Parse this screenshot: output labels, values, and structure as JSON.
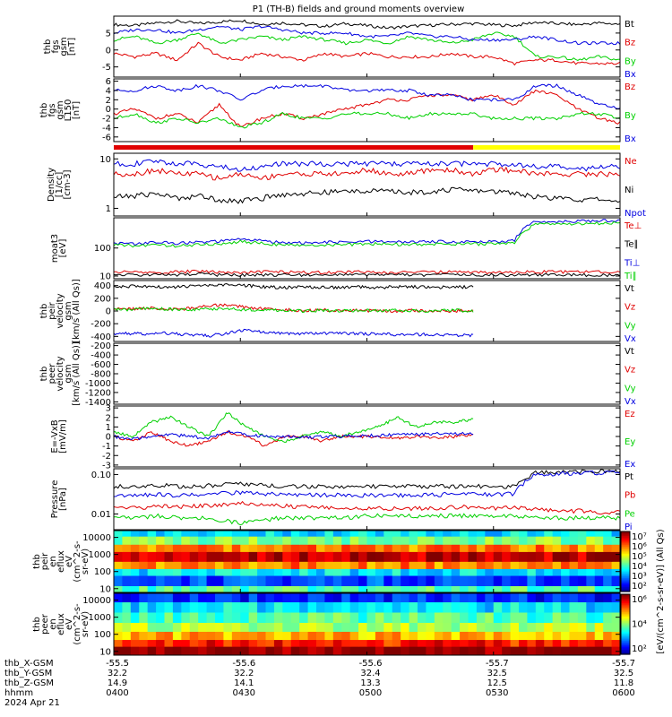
{
  "title": "P1 (TH-B) fields and ground moments overview",
  "colors": {
    "black": "#000000",
    "red": "#e00000",
    "green": "#00d000",
    "blue": "#0000e0",
    "yellow": "#ffff00"
  },
  "chart_data": [
    {
      "type": "line",
      "ylabel_lines": [
        "thb",
        "fgs",
        "gsm",
        "[nT]"
      ],
      "ylim": [
        -8,
        10
      ],
      "yticks": [
        "5",
        "0",
        "-5"
      ],
      "ytick_values": [
        5,
        0,
        -5
      ],
      "series": [
        {
          "name": "Bt",
          "color": "black",
          "values": [
            7.5,
            7.2,
            8.0,
            8.5,
            7.8,
            8.3,
            8.8,
            7.6,
            8.0,
            7.4,
            7.0,
            7.8,
            7.2,
            6.5,
            7.0,
            7.3,
            7.6,
            7.8,
            7.4,
            7.2,
            8.2,
            7.8,
            7.5,
            8.0,
            7.6
          ]
        },
        {
          "name": "Bz",
          "color": "red",
          "values": [
            -1,
            -2,
            -1,
            -3,
            2,
            -2,
            -3,
            -1,
            -2,
            -3,
            -1,
            -2,
            -1,
            -2,
            -2,
            -2,
            -1,
            -2,
            -2,
            -4,
            -3,
            -3,
            -4,
            -4,
            -4
          ]
        },
        {
          "name": "By",
          "color": "green",
          "values": [
            3,
            4,
            2,
            3,
            5,
            2,
            3,
            4,
            3,
            4,
            3,
            2,
            3,
            2,
            4,
            3,
            2,
            3,
            5,
            4,
            -2,
            -2,
            -3,
            -2,
            -3
          ]
        },
        {
          "name": "Bx",
          "color": "blue",
          "values": [
            5,
            6,
            6,
            5,
            6,
            7,
            6,
            7,
            6,
            5,
            5,
            5,
            4,
            4,
            5,
            4,
            4,
            3,
            3,
            3,
            4,
            3,
            2,
            2,
            2
          ]
        }
      ]
    },
    {
      "type": "line",
      "ylabel_lines": [
        "thb",
        "fgs",
        "gsm",
        "L150",
        "[nT]"
      ],
      "ylim": [
        -7,
        6.5
      ],
      "yticks": [
        "6",
        "4",
        "2",
        "0",
        "-2",
        "-4",
        "-6"
      ],
      "ytick_values": [
        6,
        4,
        2,
        0,
        -2,
        -4,
        -6
      ],
      "series": [
        {
          "name": "Bz",
          "color": "red",
          "values": [
            -1,
            0,
            -2,
            -1,
            -3,
            1,
            -4,
            -2,
            -1,
            -2,
            -1,
            0,
            1,
            2,
            2,
            3,
            3,
            2,
            3,
            1,
            4,
            3,
            0,
            -2,
            -3
          ]
        },
        {
          "name": "By",
          "color": "green",
          "values": [
            -2,
            -1,
            -3,
            -2,
            -3,
            -2,
            -4,
            -3,
            -1,
            -2,
            -2,
            -1,
            -1,
            -1,
            -2,
            -1,
            -1,
            -1,
            -2,
            -2,
            -2,
            -2,
            -1,
            -1,
            -2
          ]
        },
        {
          "name": "Bx",
          "color": "blue",
          "values": [
            4,
            4,
            5,
            4,
            5,
            4,
            2,
            4,
            5,
            5,
            5,
            4,
            4,
            4,
            4,
            3,
            3,
            2,
            2,
            2,
            5,
            5,
            3,
            1,
            0
          ]
        }
      ]
    },
    {
      "type": "line",
      "ylabel_lines": [
        "Density",
        "[1/cc]",
        "[cm-3]"
      ],
      "log": true,
      "ylim": [
        0.7,
        13
      ],
      "yticks": [
        "10",
        "1"
      ],
      "ytick_values": [
        10,
        1
      ],
      "series": [
        {
          "name": "Ne",
          "color": "red",
          "values": [
            5,
            5,
            6,
            5,
            5,
            4,
            5,
            4,
            5,
            5,
            5,
            5,
            6,
            5,
            5,
            6,
            6,
            5,
            6,
            6,
            5,
            5,
            5,
            5,
            5
          ]
        },
        {
          "name": "Ni",
          "color": "black",
          "values": [
            1.7,
            1.8,
            2.0,
            1.6,
            1.8,
            1.5,
            1.4,
            1.6,
            1.9,
            2.0,
            2.1,
            2.2,
            2.3,
            2.2,
            2.1,
            2.2,
            2.4,
            2.3,
            2.2,
            2.1,
            1.7,
            1.6,
            1.5,
            1.5,
            1.4
          ]
        },
        {
          "name": "Npot",
          "color": "blue",
          "values": [
            8,
            8,
            9,
            8,
            8,
            7,
            6,
            7,
            8,
            8,
            8,
            8,
            8,
            8,
            8,
            8,
            8,
            8,
            8,
            8,
            7,
            7,
            6,
            7,
            7
          ]
        }
      ]
    },
    {
      "type": "line",
      "ylabel_lines": [
        "moat3",
        "[eV]"
      ],
      "log": true,
      "ylim": [
        8,
        1200
      ],
      "yticks": [
        "100",
        "10"
      ],
      "ytick_values": [
        100,
        10
      ],
      "series": [
        {
          "name": "Te⊥",
          "color": "red",
          "values": [
            14,
            14,
            13,
            14,
            15,
            14,
            13,
            14,
            14,
            14,
            13,
            14,
            14,
            13,
            14,
            14,
            14,
            14,
            13,
            14,
            14,
            14,
            14,
            14,
            14
          ]
        },
        {
          "name": "Te∥",
          "color": "black",
          "values": [
            11,
            11,
            11,
            11,
            12,
            11,
            11,
            11,
            11,
            11,
            11,
            11,
            11,
            11,
            11,
            11,
            11,
            11,
            11,
            11,
            11,
            11,
            11,
            11,
            11
          ]
        },
        {
          "name": "Ti⊥",
          "color": "blue",
          "values": [
            150,
            140,
            160,
            150,
            160,
            170,
            210,
            180,
            160,
            150,
            160,
            160,
            170,
            170,
            160,
            170,
            170,
            170,
            170,
            180,
            880,
            900,
            920,
            940,
            960
          ]
        },
        {
          "name": "Ti∥",
          "color": "green",
          "values": [
            130,
            120,
            130,
            120,
            130,
            140,
            170,
            150,
            130,
            120,
            130,
            130,
            140,
            140,
            130,
            140,
            140,
            140,
            140,
            150,
            700,
            720,
            740,
            760,
            780
          ]
        }
      ]
    },
    {
      "type": "line",
      "ylabel_lines": [
        "thb",
        "peir",
        "velocity",
        "gsm",
        "[km/s (All Qs)]"
      ],
      "ylim": [
        -480,
        480
      ],
      "yticks": [
        "400",
        "200",
        "0",
        "-200",
        "-400"
      ],
      "ytick_values": [
        400,
        200,
        0,
        -200,
        -400
      ],
      "series": [
        {
          "name": "Vt",
          "color": "black",
          "values": [
            380,
            390,
            380,
            370,
            390,
            400,
            410,
            400,
            380,
            370,
            380,
            370,
            370,
            380,
            370,
            380,
            380,
            370,
            380,
            380
          ]
        },
        {
          "name": "Vz",
          "color": "red",
          "values": [
            40,
            30,
            50,
            20,
            40,
            80,
            100,
            60,
            30,
            20,
            10,
            20,
            10,
            10,
            0,
            0,
            10,
            0,
            0,
            10
          ]
        },
        {
          "name": "Vy",
          "color": "green",
          "values": [
            30,
            20,
            40,
            30,
            20,
            30,
            40,
            20,
            20,
            10,
            0,
            10,
            0,
            10,
            0,
            10,
            0,
            0,
            10,
            0
          ]
        },
        {
          "name": "Vx",
          "color": "blue",
          "values": [
            -350,
            -360,
            -360,
            -350,
            -380,
            -390,
            -350,
            -300,
            -340,
            -350,
            -360,
            -350,
            -350,
            -360,
            -360,
            -370,
            -370,
            -370,
            -380,
            -380
          ]
        }
      ]
    },
    {
      "type": "line",
      "ylabel_lines": [
        "thb",
        "peer",
        "velocity",
        "gsm",
        "[km/s (All Qs)]"
      ],
      "ylim": [
        -1450,
        -150
      ],
      "yticks": [
        "-200",
        "-400",
        "-600",
        "-800",
        "-1000",
        "-1200",
        "-1400"
      ],
      "ytick_values": [
        -200,
        -400,
        -600,
        -800,
        -1000,
        -1200,
        -1400
      ],
      "series": [
        {
          "name": "Vt",
          "color": "black",
          "values": []
        },
        {
          "name": "Vz",
          "color": "red",
          "values": []
        },
        {
          "name": "Vy",
          "color": "green",
          "values": []
        },
        {
          "name": "Vx",
          "color": "blue",
          "values": []
        }
      ]
    },
    {
      "type": "line",
      "ylabel_lines": [
        "E=-VxB",
        "[mV/m]"
      ],
      "ylim": [
        -3.2,
        3.2
      ],
      "yticks": [
        "3",
        "2",
        "1",
        "0",
        "-1",
        "-2",
        "-3"
      ],
      "ytick_values": [
        3,
        2,
        1,
        0,
        -1,
        -2,
        -3
      ],
      "series": [
        {
          "name": "Ez",
          "color": "red",
          "values": [
            0,
            -0.5,
            0.5,
            -0.5,
            -1,
            -0.5,
            0.5,
            0,
            -1,
            0,
            0,
            -0.5,
            0,
            0,
            0,
            -0.2,
            0,
            -0.2,
            0,
            0.2
          ]
        },
        {
          "name": "Ey",
          "color": "green",
          "values": [
            0.5,
            0,
            1.5,
            2,
            1,
            0,
            2.5,
            1,
            0,
            -0.5,
            0,
            0.5,
            0,
            0.5,
            1,
            2,
            1,
            1.5,
            1.5,
            1.8
          ]
        },
        {
          "name": "Ex",
          "color": "blue",
          "values": [
            0,
            -0.3,
            0,
            0.2,
            0,
            -0.2,
            0.5,
            0.2,
            0,
            0,
            -0.1,
            0,
            0,
            0.1,
            0.1,
            0.2,
            0.2,
            0.3,
            0.3,
            0.3
          ]
        }
      ]
    },
    {
      "type": "line",
      "ylabel_lines": [
        "Pressure",
        "[nPa]"
      ],
      "log": true,
      "ylim": [
        0.004,
        0.14
      ],
      "yticks": [
        "0.10",
        "0.01"
      ],
      "ytick_values": [
        0.1,
        0.01
      ],
      "series": [
        {
          "name": "Pt",
          "color": "black",
          "values": [
            0.05,
            0.05,
            0.055,
            0.05,
            0.05,
            0.055,
            0.06,
            0.055,
            0.05,
            0.05,
            0.05,
            0.05,
            0.05,
            0.05,
            0.05,
            0.05,
            0.05,
            0.05,
            0.05,
            0.05,
            0.11,
            0.115,
            0.12,
            0.12,
            0.125
          ]
        },
        {
          "name": "Pb",
          "color": "red",
          "values": [
            0.015,
            0.014,
            0.016,
            0.015,
            0.016,
            0.017,
            0.02,
            0.017,
            0.016,
            0.015,
            0.015,
            0.014,
            0.014,
            0.014,
            0.014,
            0.014,
            0.015,
            0.015,
            0.014,
            0.015,
            0.013,
            0.012,
            0.012,
            0.011,
            0.011
          ]
        },
        {
          "name": "Pe",
          "color": "green",
          "values": [
            0.008,
            0.008,
            0.009,
            0.008,
            0.008,
            0.007,
            0.006,
            0.007,
            0.008,
            0.008,
            0.008,
            0.008,
            0.009,
            0.009,
            0.009,
            0.009,
            0.009,
            0.009,
            0.009,
            0.009,
            0.008,
            0.008,
            0.008,
            0.008,
            0.008
          ]
        },
        {
          "name": "Pi",
          "color": "blue",
          "values": [
            0.03,
            0.03,
            0.032,
            0.03,
            0.03,
            0.033,
            0.035,
            0.033,
            0.03,
            0.03,
            0.03,
            0.03,
            0.03,
            0.03,
            0.03,
            0.03,
            0.032,
            0.032,
            0.032,
            0.032,
            0.1,
            0.105,
            0.11,
            0.112,
            0.115
          ]
        }
      ]
    },
    {
      "type": "heatmap",
      "ylabel_lines": [
        "thb",
        "peir",
        "en",
        "eflux",
        "eV",
        "(cm^2-s-",
        "sr-eV)"
      ],
      "log": true,
      "ylim": [
        6,
        25000
      ],
      "yticks": [
        "10000",
        "1000",
        "100",
        "10"
      ],
      "ytick_values": [
        10000,
        1000,
        100,
        10
      ],
      "bands": [
        {
          "from": 6,
          "to": 15,
          "level": 0.45
        },
        {
          "from": 15,
          "to": 60,
          "level": 0.2
        },
        {
          "from": 60,
          "to": 150,
          "level": 0.35
        },
        {
          "from": 150,
          "to": 400,
          "level": 0.75
        },
        {
          "from": 400,
          "to": 1500,
          "level": 0.95
        },
        {
          "from": 1500,
          "to": 4000,
          "level": 0.75
        },
        {
          "from": 4000,
          "to": 12000,
          "level": 0.5
        },
        {
          "from": 12000,
          "to": 25000,
          "level": 0.35
        }
      ]
    },
    {
      "type": "heatmap",
      "ylabel_lines": [
        "thb",
        "peer",
        "en",
        "eflux",
        "eV",
        "(cm^2-s-",
        "sr-eV)"
      ],
      "log": true,
      "ylim": [
        6,
        25000
      ],
      "yticks": [
        "10000",
        "1000",
        "100",
        "10"
      ],
      "ytick_values": [
        10000,
        1000,
        100,
        10
      ],
      "bands": [
        {
          "from": 6,
          "to": 20,
          "level": 1.0
        },
        {
          "from": 20,
          "to": 50,
          "level": 0.85
        },
        {
          "from": 50,
          "to": 150,
          "level": 0.7
        },
        {
          "from": 150,
          "to": 500,
          "level": 0.55
        },
        {
          "from": 500,
          "to": 2000,
          "level": 0.45
        },
        {
          "from": 2000,
          "to": 8000,
          "level": 0.35
        },
        {
          "from": 8000,
          "to": 25000,
          "level": 0.15
        }
      ]
    }
  ],
  "colorbar_top": {
    "label": "[eV/(cm^2-s-sr-eV)] (All Qs)",
    "ticks": [
      "10⁷",
      "10⁶",
      "10⁵",
      "10⁴",
      "10³",
      "10²"
    ]
  },
  "colorbar_bottom": {
    "label": "[eV/(cm^2-s-sr-eV)]",
    "ticks": [
      "10⁶",
      "10⁴",
      "10²"
    ]
  },
  "xaxis": {
    "row_labels": [
      "thb_X-GSM",
      "thb_Y-GSM",
      "thb_Z-GSM",
      "hhmm",
      "2024 Apr 21"
    ],
    "columns": [
      [
        "-55.5",
        "32.2",
        "14.9",
        "0400"
      ],
      [
        "-55.6",
        "32.2",
        "14.1",
        "0430"
      ],
      [
        "-55.6",
        "32.4",
        "13.3",
        "0500"
      ],
      [
        "-55.7",
        "32.5",
        "12.5",
        "0530"
      ],
      [
        "-55.7",
        "32.5",
        "11.8",
        "0600"
      ]
    ]
  },
  "mode_bar": {
    "split_fraction": 0.71,
    "left_color": "red",
    "right_color": "yellow"
  }
}
